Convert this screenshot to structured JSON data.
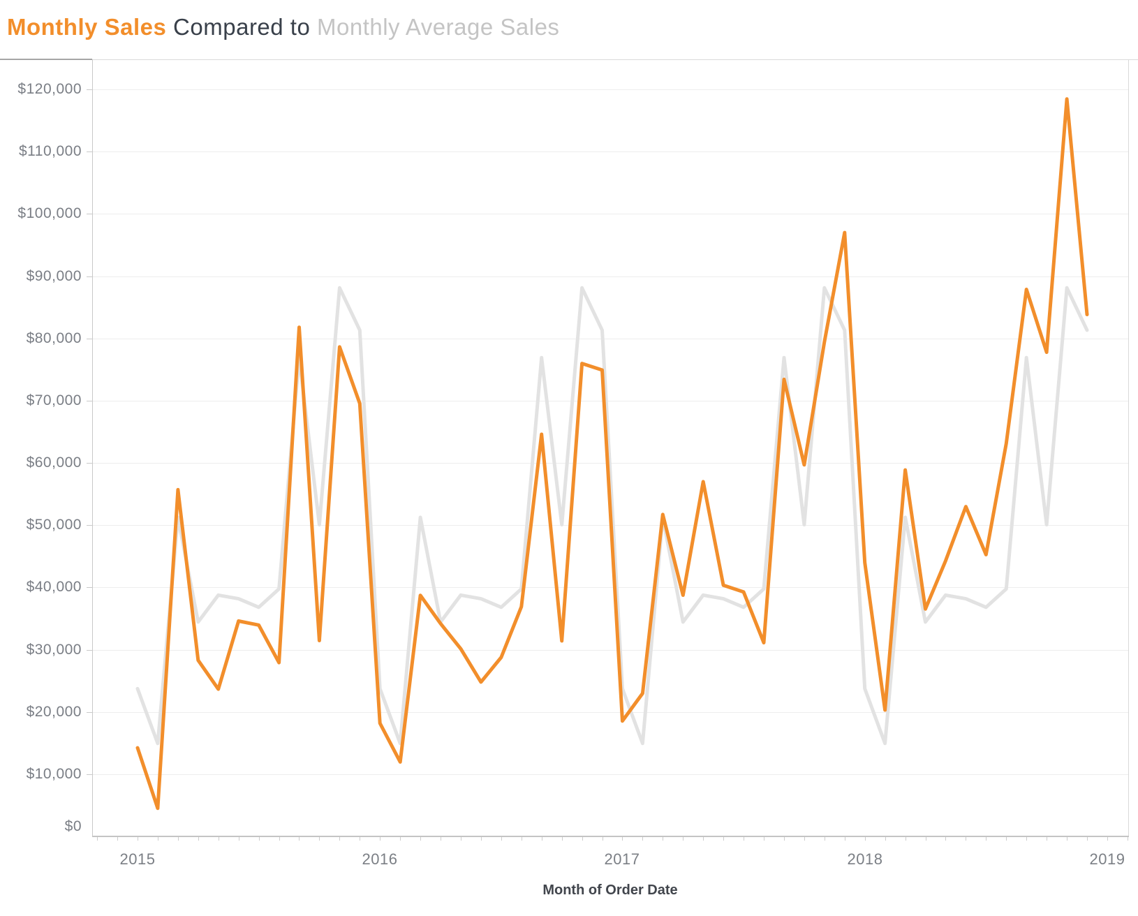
{
  "title": {
    "sales_part": "Monthly Sales",
    "compare_part": " Compared to ",
    "average_part": "Monthly Average Sales"
  },
  "colors": {
    "sales_line": "#F28E2B",
    "average_line": "#E2E2E2",
    "title_sales": "#F28E2B",
    "title_middle": "#39404A",
    "title_average": "#C4C4C4",
    "tick_label_text": "#7A7E85",
    "axis_title_text": "#41454C",
    "gridline": "#EDEDED",
    "axis_line": "#C9C9C9"
  },
  "y_axis": {
    "tick_labels": [
      "$0",
      "$10,000",
      "$20,000",
      "$30,000",
      "$40,000",
      "$50,000",
      "$60,000",
      "$70,000",
      "$80,000",
      "$90,000",
      "$100,000",
      "$110,000",
      "$120,000"
    ],
    "min": 0,
    "max": 120000,
    "tick_step": 10000
  },
  "x_axis": {
    "title": "Month of Order Date",
    "tick_labels": [
      "2015",
      "2016",
      "2017",
      "2018",
      "2019"
    ]
  },
  "chart_data": {
    "type": "line",
    "title": "Monthly Sales Compared to Monthly Average Sales",
    "xlabel": "Month of Order Date",
    "ylabel": "",
    "ylim": [
      0,
      120000
    ],
    "grid": "horizontal",
    "legend_position": "none (encoded in title colors)",
    "x": [
      "2015-01",
      "2015-02",
      "2015-03",
      "2015-04",
      "2015-05",
      "2015-06",
      "2015-07",
      "2015-08",
      "2015-09",
      "2015-10",
      "2015-11",
      "2015-12",
      "2016-01",
      "2016-02",
      "2016-03",
      "2016-04",
      "2016-05",
      "2016-06",
      "2016-07",
      "2016-08",
      "2016-09",
      "2016-10",
      "2016-11",
      "2016-12",
      "2017-01",
      "2017-02",
      "2017-03",
      "2017-04",
      "2017-05",
      "2017-06",
      "2017-07",
      "2017-08",
      "2017-09",
      "2017-10",
      "2017-11",
      "2017-12",
      "2018-01",
      "2018-02",
      "2018-03",
      "2018-04",
      "2018-05",
      "2018-06",
      "2018-07",
      "2018-08",
      "2018-09",
      "2018-10",
      "2018-11",
      "2018-12"
    ],
    "series": [
      {
        "name": "Monthly Sales",
        "color": "#F28E2B",
        "values": [
          14237,
          4520,
          55691,
          28295,
          23648,
          34595,
          33946,
          27909,
          81777,
          31453,
          78629,
          69545,
          18174,
          11951,
          38726,
          34195,
          30131,
          24797,
          28765,
          36898,
          64595,
          31404,
          75973,
          74920,
          18542,
          22978,
          51716,
          38750,
          56988,
          40344,
          39262,
          31115,
          73410,
          59687,
          79412,
          96999,
          43971,
          20301,
          58872,
          36522,
          44261,
          52982,
          45264,
          63121,
          87867,
          77777,
          118448,
          83829
        ]
      },
      {
        "name": "Monthly Average Sales",
        "color": "#E2E2E2",
        "note": "average of each calendar month across 2015-2018, repeated every year",
        "monthly_averages": [
          23731,
          14938,
          51251,
          34440,
          38757,
          38180,
          36809,
          39761,
          76912,
          50080,
          88116,
          81323
        ]
      }
    ]
  }
}
